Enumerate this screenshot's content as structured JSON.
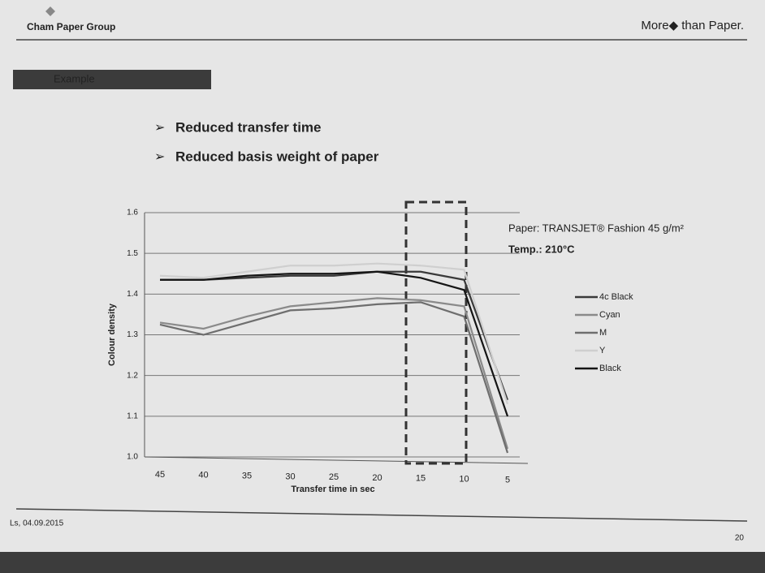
{
  "header": {
    "company": "Cham Paper Group",
    "tagline": "More◆ than Paper."
  },
  "section": "Example",
  "bullets": [
    "Reduced transfer time",
    "Reduced basis weight of paper"
  ],
  "footer": {
    "author_date": "Ls, 04.09.2015",
    "page": "20"
  },
  "chart_data": {
    "type": "line",
    "annotations": [
      "Paper: TRANSJET® Fashion 45 g/m²",
      "Temp.: 210°C"
    ],
    "x_label": "Transfer time in sec",
    "y_label": "Colour density",
    "categories": [
      "45",
      "40",
      "35",
      "30",
      "25",
      "20",
      "15",
      "10",
      "5"
    ],
    "ylim": [
      1.0,
      1.6
    ],
    "yticks": [
      {
        "value": 1.0,
        "label": "1.0"
      },
      1.1,
      1.2,
      1.3,
      1.4,
      1.5,
      1.6
    ],
    "grid": true,
    "series": [
      {
        "name": "4c Black",
        "color": "#3a3a3a",
        "values": [
          1.435,
          1.435,
          1.44,
          1.445,
          1.445,
          1.455,
          1.455,
          1.435,
          1.14
        ]
      },
      {
        "name": "Cyan",
        "color": "#8a8a8a",
        "values": [
          1.33,
          1.315,
          1.345,
          1.37,
          1.38,
          1.39,
          1.385,
          1.37,
          1.02
        ]
      },
      {
        "name": "M",
        "color": "#6e6e6e",
        "values": [
          1.325,
          1.3,
          1.33,
          1.36,
          1.365,
          1.375,
          1.38,
          1.345,
          1.01
        ]
      },
      {
        "name": "Y",
        "color": "#cfcfcf",
        "values": [
          1.445,
          1.44,
          1.455,
          1.47,
          1.47,
          1.475,
          1.47,
          1.46,
          1.13
        ]
      },
      {
        "name": "Black",
        "color": "#151515",
        "values": [
          1.435,
          1.435,
          1.445,
          1.45,
          1.45,
          1.455,
          1.44,
          1.41,
          1.1
        ]
      }
    ]
  }
}
